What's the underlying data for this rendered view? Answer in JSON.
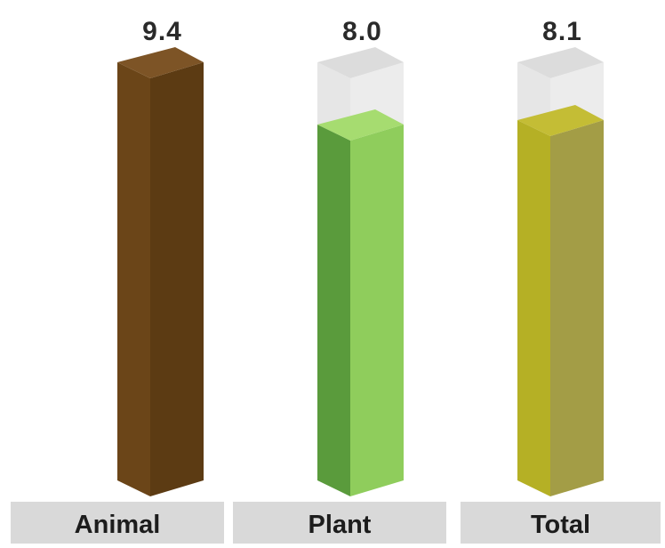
{
  "chart_data": {
    "type": "bar",
    "categories": [
      "Animal",
      "Plant",
      "Total"
    ],
    "values": [
      9.4,
      8.0,
      8.1
    ],
    "value_labels": [
      "9.4",
      "8.0",
      "8.1"
    ],
    "ylim": [
      0,
      9.4
    ],
    "grid": false,
    "legend": "none",
    "colors": {
      "Animal": {
        "front": "#6b4518",
        "side": "#5c3b13",
        "top": "#7d5426"
      },
      "Plant": {
        "front": "#5a9b3c",
        "side": "#8fcd5c",
        "top": "#a6dc70"
      },
      "Total": {
        "front": "#b5b025",
        "side": "#a39d46",
        "top": "#c4bd35"
      },
      "ghost": {
        "front": "#e6e6e6",
        "side": "#ececec",
        "top": "#dcdcdc"
      },
      "category_tab": "#d9d9d9"
    }
  }
}
